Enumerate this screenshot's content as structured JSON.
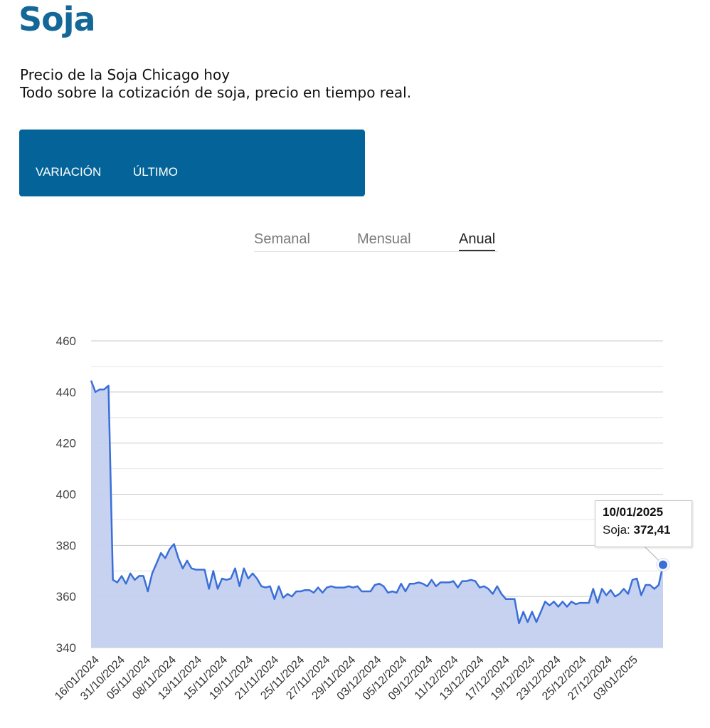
{
  "header": {
    "title": "Soja",
    "subtitle_line1": "Precio de la Soja Chicago hoy",
    "subtitle_line2": "Todo sobre la cotización de soja, precio en tiempo real."
  },
  "panel": {
    "tabs": [
      "VARIACIÓN",
      "ÚLTIMO"
    ]
  },
  "period_tabs": {
    "items": [
      "Semanal",
      "Mensual",
      "Anual"
    ],
    "active": "Anual"
  },
  "tooltip": {
    "date": "10/01/2025",
    "series_label": "Soja: ",
    "value": "372,41"
  },
  "colors": {
    "brand": "#136897",
    "panel": "#04649a",
    "line": "#3a6fd8",
    "area": "#c3d0ee"
  },
  "chart_data": {
    "type": "area",
    "ylim": [
      340,
      460
    ],
    "yticks": [
      340,
      360,
      380,
      400,
      420,
      440,
      460
    ],
    "grid": true,
    "legend": "none",
    "x_labels": [
      "16/01/2024",
      "31/10/2024",
      "05/11/2024",
      "08/11/2024",
      "13/11/2024",
      "15/11/2024",
      "19/11/2024",
      "21/11/2024",
      "25/11/2024",
      "27/11/2024",
      "29/11/2024",
      "03/12/2024",
      "05/12/2024",
      "09/12/2024",
      "11/12/2024",
      "13/12/2024",
      "17/12/2024",
      "19/12/2024",
      "23/12/2024",
      "25/12/2024",
      "27/12/2024",
      "03/01/2025"
    ],
    "series": [
      {
        "name": "Soja",
        "values": [
          444.5,
          440,
          441,
          441,
          442.5,
          366.5,
          365.5,
          368,
          365,
          369,
          366.5,
          368,
          368,
          362,
          369,
          373,
          377,
          375,
          378.5,
          380.5,
          375,
          371,
          374,
          371,
          370.5,
          370.5,
          370.5,
          363,
          370,
          363,
          367,
          366.5,
          367,
          371,
          364,
          371,
          367,
          369,
          367,
          364,
          363.5,
          364,
          359,
          364,
          359.5,
          361,
          360,
          362,
          362,
          362.5,
          362.5,
          361.5,
          363.5,
          361.5,
          363.5,
          364,
          363.5,
          363.5,
          363.5,
          364,
          363.5,
          364,
          362,
          362,
          362,
          364.5,
          365,
          364,
          361.5,
          362,
          361.5,
          365,
          362,
          365,
          365,
          365.5,
          365,
          364,
          366.5,
          364,
          365.5,
          365.5,
          365.5,
          366,
          363.5,
          366,
          366,
          366.5,
          366,
          363.5,
          364,
          363,
          361,
          364,
          361,
          359,
          359,
          359,
          349.5,
          354,
          350,
          354,
          350,
          354,
          358,
          356.5,
          358,
          356,
          358,
          356,
          358,
          357,
          357.5,
          357.5,
          357.5,
          363,
          357.5,
          363,
          360.5,
          362.5,
          360,
          361,
          363,
          361,
          366.5,
          367,
          360.5,
          364.5,
          364.5,
          363,
          364.5,
          372.41
        ]
      }
    ],
    "highlight": {
      "label": "10/01/2025",
      "value": 372.41
    }
  }
}
